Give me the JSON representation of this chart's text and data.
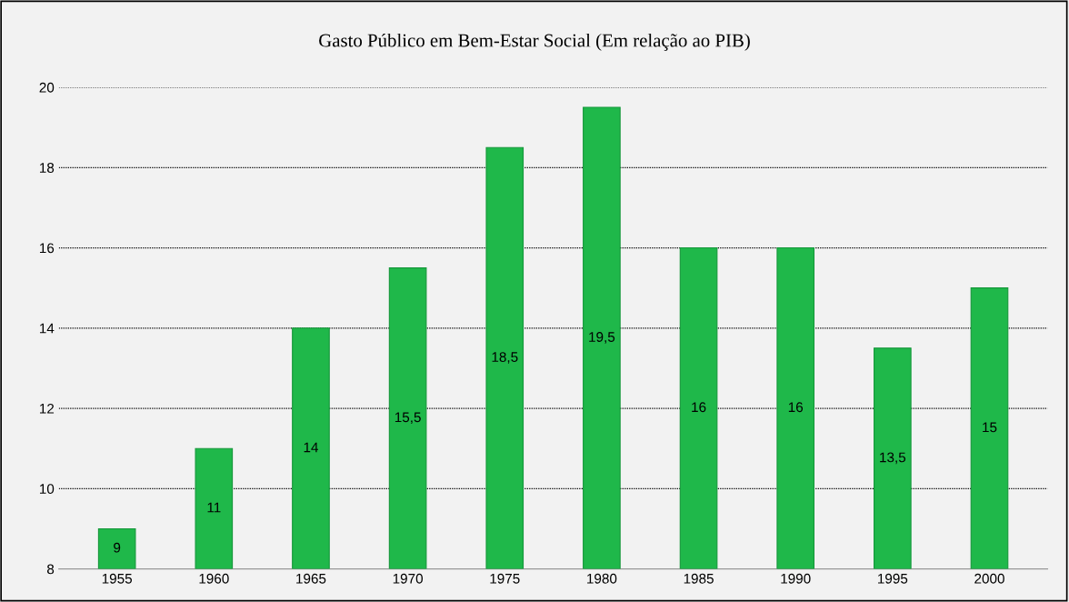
{
  "chart_data": {
    "type": "bar",
    "title": "Gasto Público em Bem-Estar Social (Em relação ao PIB)",
    "categories": [
      "1955",
      "1960",
      "1965",
      "1970",
      "1975",
      "1980",
      "1985",
      "1990",
      "1995",
      "2000"
    ],
    "values": [
      9,
      11,
      14,
      15.5,
      18.5,
      19.5,
      16,
      16,
      13.5,
      15
    ],
    "value_labels": [
      "9",
      "11",
      "14",
      "15,5",
      "18,5",
      "19,5",
      "16",
      "16",
      "13,5",
      "15"
    ],
    "color": "#1fb84a",
    "ylim": [
      8,
      20
    ],
    "yticks": [
      8,
      10,
      12,
      14,
      16,
      18,
      20
    ],
    "grid": "y",
    "legend": false
  }
}
